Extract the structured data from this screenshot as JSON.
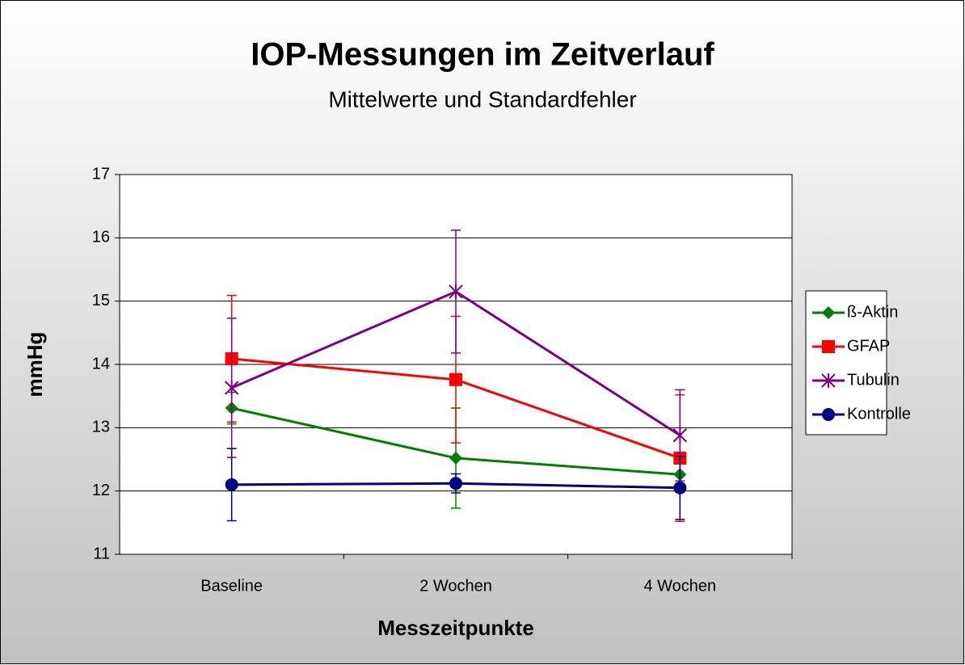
{
  "chart_data": {
    "type": "line",
    "title": "IOP-Messungen im Zeitverlauf",
    "subtitle": "Mittelwerte und Standardfehler",
    "x_label": "Messzeitpunkte",
    "y_label": "mmHg",
    "categories": [
      "Baseline",
      "2 Wochen",
      "4 Wochen"
    ],
    "ylim": [
      11,
      17
    ],
    "yticks": [
      11,
      12,
      13,
      14,
      15,
      16,
      17
    ],
    "grid": true,
    "legend": "right",
    "series": [
      {
        "name": "ß-Aktin",
        "color": "#008000",
        "marker": "diamond",
        "values": [
          13.31,
          12.52,
          12.26
        ],
        "errors": [
          0.25,
          0.79,
          0.28
        ]
      },
      {
        "name": "GFAP",
        "color": "#ff0000",
        "marker": "square",
        "values": [
          14.09,
          13.76,
          12.52
        ],
        "errors": [
          1.0,
          1.0,
          1.0
        ]
      },
      {
        "name": "Tubulin",
        "color": "#800080",
        "marker": "star",
        "values": [
          13.63,
          15.15,
          12.88
        ],
        "errors": [
          1.1,
          0.97,
          0.72
        ]
      },
      {
        "name": "Kontrolle",
        "color": "#000080",
        "marker": "circle",
        "values": [
          12.1,
          12.12,
          12.05
        ],
        "errors": [
          0.57,
          0.15,
          0.5
        ]
      }
    ]
  }
}
